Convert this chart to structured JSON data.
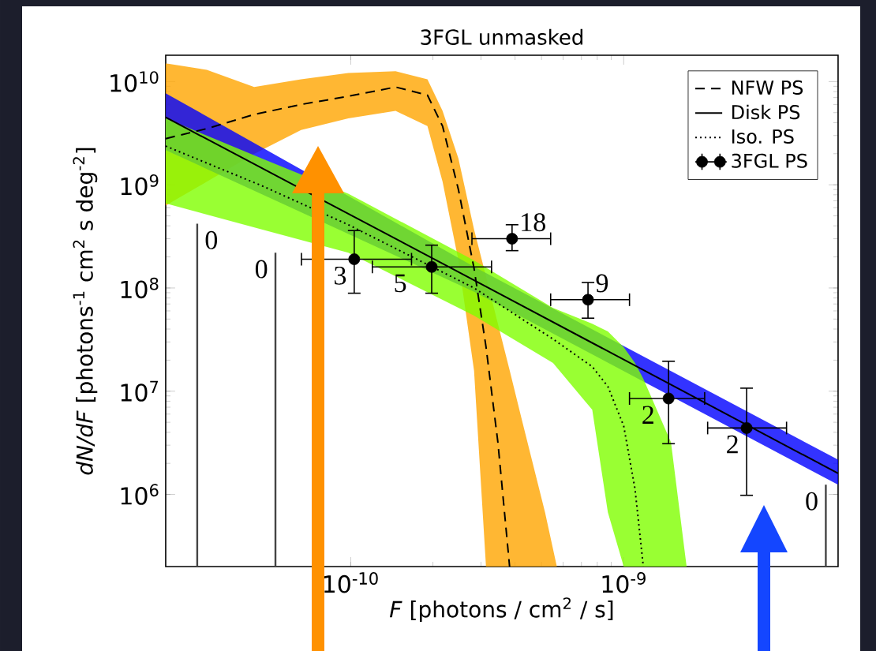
{
  "chart_data": {
    "type": "line",
    "title": "3FGL unmasked",
    "xlabel": "*F*  [photons / cm$^{2}$  / s]",
    "ylabel": "*dN/dF*  [photons$^{-1}$ cm$^{2}$ s deg$^{-2}$]",
    "log": "xy",
    "legend": "top right",
    "xlim": [
      2.1e-11,
      6.1e-09
    ],
    "ylim": [
      200000.0,
      18000000000.0
    ],
    "xticks": [
      {
        "value": 1e-10,
        "label": "10$^{-10}$"
      },
      {
        "value": 1e-09,
        "label": "10$^{-9}$"
      }
    ],
    "yticks": [
      {
        "value": 1000000.0,
        "label": "10$^{6}$"
      },
      {
        "value": 10000000.0,
        "label": "10$^{7}$"
      },
      {
        "value": 100000000.0,
        "label": "10$^{8}$"
      },
      {
        "value": 1000000000.0,
        "label": "10$^{9}$"
      },
      {
        "value": 10000000000.0,
        "label": "10$^{10}$"
      }
    ],
    "series": [
      {
        "type": "area",
        "color": "#ffa500",
        "x": [
          2.1e-11,
          2.97e-11,
          4.43e-11,
          6.58e-11,
          9.8e-11,
          1.46e-10,
          1.91e-10,
          2.17e-10,
          2.48e-10,
          2.83e-10,
          3.13e-10,
          3.46e-10,
          3.82e-10,
          4.22e-10,
          5.15e-10,
          5.69e-10
        ],
        "values": [
          null,
          null,
          null,
          null,
          null,
          null,
          null,
          null,
          null,
          null,
          null,
          null,
          null,
          null,
          null,
          null
        ],
        "upper": [
          15000000000.0,
          13000000000.0,
          8850000000.0,
          10500000000.0,
          12100000000.0,
          12600000000.0,
          10500000000.0,
          5200000000.0,
          1800000000.0,
          370000000.0,
          130000000.0,
          45000000.0,
          16000000.0,
          5500000.0,
          670000.0,
          200000.0
        ],
        "lower": [
          630000000.0,
          1070000000.0,
          1990000000.0,
          3400000000.0,
          4400000000.0,
          5200000000.0,
          3700000000.0,
          1070000000.0,
          185000000.0,
          15800000.0,
          200000.0,
          200000.0,
          200000.0,
          200000.0,
          200000.0,
          200000.0
        ]
      },
      {
        "type": "area",
        "color": "#0000ff",
        "x": [
          2.1e-11,
          2.83e-10,
          6.1e-09
        ],
        "values": [
          null,
          null,
          null
        ],
        "upper": [
          7700000000.0,
          161000000.0,
          2170000.0
        ],
        "lower": [
          2170000000.0,
          92000000.0,
          1240000.0
        ]
      },
      {
        "type": "area",
        "color": "#7fff00",
        "x": [
          2.1e-11,
          4.72e-11,
          9.8e-11,
          2.83e-10,
          5.51e-10,
          7.67e-10,
          8.75e-10,
          1e-09,
          1.1e-09,
          1.18e-09,
          1.49e-09,
          1.7e-09
        ],
        "values": [
          null,
          null,
          null,
          null,
          null,
          null,
          null,
          null,
          null,
          null,
          null,
          null
        ],
        "upper": [
          4400000000.0,
          1800000000.0,
          820000000.0,
          185000000.0,
          64000000.0,
          45000000.0,
          38000000.0,
          26700000.0,
          18800000.0,
          13200000.0,
          3200000.0,
          200000.0
        ],
        "lower": [
          660000000.0,
          370000000.0,
          220000000.0,
          54000000.0,
          18800000.0,
          6600000.0,
          670000.0,
          200000.0,
          200000.0,
          200000.0,
          200000.0,
          200000.0
        ]
      },
      {
        "name": "NFW PS",
        "line_style": "dashed",
        "color": "#000000",
        "x": [
          2.1e-11,
          2.97e-11,
          4.43e-11,
          6.58e-11,
          9.8e-11,
          1.46e-10,
          1.91e-10,
          2.17e-10,
          2.48e-10,
          2.83e-10,
          3.13e-10,
          3.46e-10,
          3.82e-10
        ],
        "values": [
          2800000000.0,
          3500000000.0,
          4800000000.0,
          6000000000.0,
          7200000000.0,
          8850000000.0,
          7400000000.0,
          3700000000.0,
          900000000.0,
          155000000.0,
          27000000.0,
          3200000.0,
          200000.0
        ]
      },
      {
        "name": "Disk PS",
        "line_style": "solid",
        "color": "#000000",
        "x": [
          2.1e-11,
          2.83e-10,
          6.1e-09
        ],
        "values": [
          4500000000.0,
          119000000.0,
          1600000.0
        ]
      },
      {
        "name": "Iso. PS",
        "line_style": "dotted",
        "color": "#000000",
        "x": [
          2.1e-11,
          4.72e-11,
          9.8e-11,
          2.83e-10,
          5.51e-10,
          7.67e-10,
          8.75e-10,
          1e-09,
          1.1e-09,
          1.18e-09
        ],
        "values": [
          2370000000.0,
          980000000.0,
          410000000.0,
          100000000.0,
          32000000.0,
          17300000.0,
          11100000.0,
          4600000.0,
          1130000.0,
          200000.0
        ]
      },
      {
        "name": "3FGL PS",
        "type": "scatter",
        "marker": "circle",
        "color": "#000000",
        "x": [
          1.03e-10,
          1.98e-10,
          3.9e-10,
          7.4e-10,
          1.46e-09,
          2.82e-09
        ],
        "values": [
          190000000.0,
          160000000.0,
          300000000.0,
          77000000.0,
          8500000.0,
          4400000.0
        ],
        "errors": [
          [
            89000000.0,
            360000000.0
          ],
          [
            89000000.0,
            260000000.0
          ],
          [
            230000000.0,
            410000000.0
          ],
          [
            51000000.0,
            113000000.0
          ],
          [
            3100000.0,
            19500000.0
          ],
          [
            980000.0,
            10700000.0
          ]
        ],
        "xerrors": [
          [
            6.6e-11,
            1.67e-10
          ],
          [
            1.2e-10,
            3.28e-10
          ],
          [
            2.78e-10,
            5.4e-10
          ],
          [
            5.4e-10,
            1.05e-09
          ],
          [
            1.05e-09,
            1.98e-09
          ],
          [
            2.03e-09,
            3.95e-09
          ]
        ]
      },
      {
        "type": "bar",
        "color": "#444444",
        "x": [
          2.74e-11,
          5.3e-11,
          5.5e-09
        ],
        "values": [
          420000000.0,
          220000000.0,
          1240000.0
        ]
      }
    ],
    "annotations": [
      {
        "text": "0",
        "x": 2.74e-11,
        "y": 420000000.0
      },
      {
        "text": "0",
        "x": 5.3e-11,
        "y": 220000000.0
      },
      {
        "text": "3",
        "x": 1.03e-10,
        "y": 190000000.0
      },
      {
        "text": "5",
        "x": 1.98e-10,
        "y": 160000000.0
      },
      {
        "text": "18",
        "x": 3.9e-10,
        "y": 300000000.0
      },
      {
        "text": "9",
        "x": 7.4e-10,
        "y": 77000000.0
      },
      {
        "text": "2",
        "x": 1.46e-09,
        "y": 8500000.0
      },
      {
        "text": "2",
        "x": 2.82e-09,
        "y": 4400000.0
      },
      {
        "text": "0",
        "x": 5.5e-09,
        "y": 1240000.0
      }
    ]
  }
}
